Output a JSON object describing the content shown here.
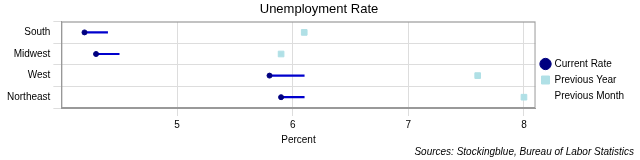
{
  "chart_data": {
    "type": "dot",
    "title": "Unemployment Rate",
    "x_label": "Percent",
    "annotation": "Sources: Stockingblue, Bureau of Labor Statistics",
    "orientation": "horizontal",
    "categories": [
      "South",
      "Midwest",
      "West",
      "Northeast"
    ],
    "series": [
      {
        "name": "Current Rate",
        "color": "#000080",
        "marker": "circle",
        "values": [
          4.2,
          4.3,
          5.8,
          5.9
        ]
      },
      {
        "name": "Previous Month",
        "color": "#0000cd",
        "type": "segment",
        "values": [
          4.4,
          4.5,
          6.1,
          6.1
        ]
      },
      {
        "name": "Previous Year",
        "color": "#b0e0e6",
        "marker": "square",
        "values": [
          6.1,
          5.9,
          7.6,
          8.0
        ]
      }
    ],
    "xlim": [
      4,
      8.1
    ],
    "xticks": [
      5,
      6,
      7,
      8
    ],
    "grid": true,
    "legend": "right"
  }
}
